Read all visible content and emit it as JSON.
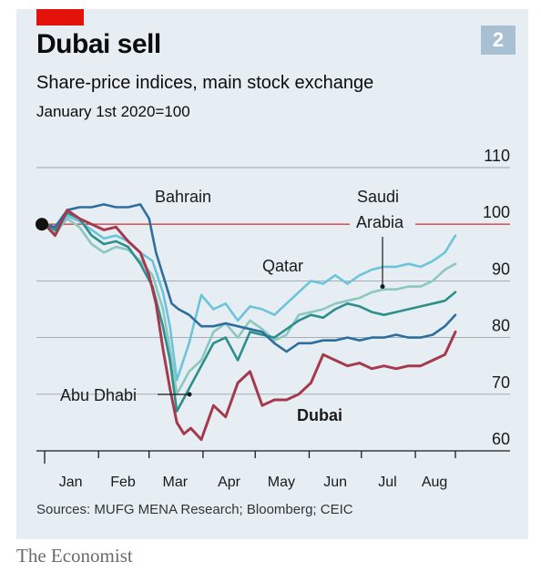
{
  "header": {
    "badge": "2",
    "title": "Dubai sell",
    "subtitle": "Share-price indices, main stock exchange",
    "note": "January 1st 2020=100"
  },
  "footer": {
    "source": "Sources: MUFG MENA Research; Bloomberg; CEIC",
    "brand": "The Economist"
  },
  "colors": {
    "panel": "#e6eef3",
    "accent": "#e3120b",
    "reference_line": "#d85a5a",
    "grid": "#9aa4ab",
    "Bahrain": "#2d6e9e",
    "Saudi Arabia": "#8cc8c0",
    "Qatar": "#6cc4da",
    "Abu Dhabi": "#2c8f8c",
    "Dubai": "#a53a4d"
  },
  "chart_data": {
    "type": "line",
    "title": "Dubai sell",
    "subtitle": "Share-price indices, main stock exchange",
    "ylabel": "January 1st 2020=100",
    "ylim": [
      60,
      110
    ],
    "yticks": [
      "110",
      "100",
      "90",
      "80",
      "70",
      "60"
    ],
    "xticks": [
      "Jan",
      "Feb",
      "Mar",
      "Apr",
      "May",
      "Jun",
      "Jul",
      "Aug"
    ],
    "xlim": [
      "2020-01-01",
      "2020-08-24"
    ],
    "reference_value": 100,
    "grid": true,
    "labels": {
      "Bahrain": "Bahrain",
      "Saudi Arabia line 1": "Saudi",
      "Saudi Arabia line 2": "Arabia",
      "Qatar": "Qatar",
      "Abu Dhabi": "Abu Dhabi",
      "Dubai": "Dubai"
    },
    "series": [
      {
        "name": "Saudi Arabia",
        "x": [
          "2020-01-01",
          "2020-01-07",
          "2020-01-14",
          "2020-01-21",
          "2020-01-28",
          "2020-02-04",
          "2020-02-11",
          "2020-02-18",
          "2020-02-25",
          "2020-03-03",
          "2020-03-09",
          "2020-03-13",
          "2020-03-17",
          "2020-03-24",
          "2020-03-31",
          "2020-04-07",
          "2020-04-14",
          "2020-04-21",
          "2020-04-28",
          "2020-05-05",
          "2020-05-12",
          "2020-05-19",
          "2020-05-26",
          "2020-06-02",
          "2020-06-09",
          "2020-06-16",
          "2020-06-23",
          "2020-06-30",
          "2020-07-07",
          "2020-07-14",
          "2020-07-21",
          "2020-07-28",
          "2020-08-04",
          "2020-08-11",
          "2020-08-18",
          "2020-08-24"
        ],
        "values": [
          100,
          98.5,
          101,
          99.5,
          96.5,
          95,
          96,
          95.5,
          93.5,
          91,
          85,
          78,
          70,
          74,
          76,
          81,
          82.5,
          80,
          83,
          81.5,
          79.5,
          80.5,
          84,
          84.5,
          85,
          86,
          86.5,
          87,
          88,
          88.5,
          88.5,
          89,
          89,
          90,
          92,
          93
        ]
      },
      {
        "name": "Qatar",
        "x": [
          "2020-01-01",
          "2020-01-07",
          "2020-01-14",
          "2020-01-21",
          "2020-01-28",
          "2020-02-04",
          "2020-02-11",
          "2020-02-18",
          "2020-02-25",
          "2020-03-03",
          "2020-03-09",
          "2020-03-13",
          "2020-03-17",
          "2020-03-24",
          "2020-03-31",
          "2020-04-07",
          "2020-04-14",
          "2020-04-21",
          "2020-04-28",
          "2020-05-05",
          "2020-05-12",
          "2020-05-19",
          "2020-05-26",
          "2020-06-02",
          "2020-06-09",
          "2020-06-16",
          "2020-06-23",
          "2020-06-30",
          "2020-07-07",
          "2020-07-14",
          "2020-07-21",
          "2020-07-28",
          "2020-08-04",
          "2020-08-11",
          "2020-08-18",
          "2020-08-24"
        ],
        "values": [
          100,
          98,
          101.5,
          100.5,
          99,
          97.5,
          98,
          97,
          95,
          93.5,
          88,
          82,
          72.5,
          79,
          87.5,
          85,
          86,
          83,
          85.5,
          85,
          84,
          86,
          88,
          90,
          89.5,
          91,
          89.5,
          91,
          92,
          92.5,
          92.5,
          93,
          92.5,
          93.5,
          95,
          98
        ]
      },
      {
        "name": "Abu Dhabi",
        "x": [
          "2020-01-01",
          "2020-01-07",
          "2020-01-14",
          "2020-01-21",
          "2020-01-28",
          "2020-02-04",
          "2020-02-11",
          "2020-02-18",
          "2020-02-25",
          "2020-03-03",
          "2020-03-09",
          "2020-03-13",
          "2020-03-17",
          "2020-03-24",
          "2020-03-31",
          "2020-04-07",
          "2020-04-14",
          "2020-04-21",
          "2020-04-28",
          "2020-05-05",
          "2020-05-12",
          "2020-05-19",
          "2020-05-26",
          "2020-06-02",
          "2020-06-09",
          "2020-06-16",
          "2020-06-23",
          "2020-06-30",
          "2020-07-07",
          "2020-07-14",
          "2020-07-21",
          "2020-07-28",
          "2020-08-04",
          "2020-08-11",
          "2020-08-18",
          "2020-08-24"
        ],
        "values": [
          100,
          99,
          102,
          101,
          98,
          96.5,
          97,
          96,
          93,
          89,
          82,
          76,
          67,
          71,
          75,
          79,
          80,
          76,
          81,
          80.5,
          80,
          81.5,
          83,
          84,
          83.5,
          85,
          86,
          85.5,
          84.5,
          84,
          84.5,
          85,
          85.5,
          86,
          86.5,
          88
        ]
      },
      {
        "name": "Bahrain",
        "x": [
          "2020-01-01",
          "2020-01-07",
          "2020-01-14",
          "2020-01-21",
          "2020-01-28",
          "2020-02-04",
          "2020-02-11",
          "2020-02-18",
          "2020-02-25",
          "2020-03-01",
          "2020-03-05",
          "2020-03-10",
          "2020-03-14",
          "2020-03-18",
          "2020-03-24",
          "2020-03-31",
          "2020-04-07",
          "2020-04-14",
          "2020-04-21",
          "2020-04-28",
          "2020-05-05",
          "2020-05-12",
          "2020-05-19",
          "2020-05-26",
          "2020-06-02",
          "2020-06-09",
          "2020-06-16",
          "2020-06-23",
          "2020-06-30",
          "2020-07-07",
          "2020-07-14",
          "2020-07-21",
          "2020-07-28",
          "2020-08-04",
          "2020-08-11",
          "2020-08-18",
          "2020-08-24"
        ],
        "values": [
          100,
          99.5,
          102.5,
          103,
          103,
          103.5,
          103,
          103,
          103.5,
          101,
          95,
          90,
          86,
          85,
          84,
          82,
          82,
          82.5,
          82,
          81.5,
          81,
          79,
          77.5,
          79,
          79,
          79.5,
          79.5,
          80,
          79.5,
          80,
          80,
          80.5,
          80,
          80,
          80.5,
          82,
          84
        ]
      },
      {
        "name": "Dubai",
        "x": [
          "2020-01-01",
          "2020-01-07",
          "2020-01-14",
          "2020-01-21",
          "2020-01-28",
          "2020-02-04",
          "2020-02-11",
          "2020-02-18",
          "2020-02-25",
          "2020-03-01",
          "2020-03-05",
          "2020-03-09",
          "2020-03-13",
          "2020-03-17",
          "2020-03-21",
          "2020-03-25",
          "2020-03-31",
          "2020-04-07",
          "2020-04-14",
          "2020-04-21",
          "2020-04-28",
          "2020-05-05",
          "2020-05-12",
          "2020-05-19",
          "2020-05-26",
          "2020-06-02",
          "2020-06-09",
          "2020-06-16",
          "2020-06-23",
          "2020-06-30",
          "2020-07-07",
          "2020-07-14",
          "2020-07-21",
          "2020-07-28",
          "2020-08-04",
          "2020-08-11",
          "2020-08-18",
          "2020-08-24"
        ],
        "values": [
          100,
          98,
          102.5,
          101,
          100,
          99,
          99.5,
          97,
          95,
          91,
          86,
          78,
          71,
          65,
          63,
          64,
          62,
          68,
          66,
          72,
          74,
          68,
          69,
          69,
          70,
          72,
          77,
          76,
          75,
          75.5,
          74.5,
          75,
          74.5,
          75,
          75,
          76,
          77,
          81
        ]
      }
    ]
  }
}
